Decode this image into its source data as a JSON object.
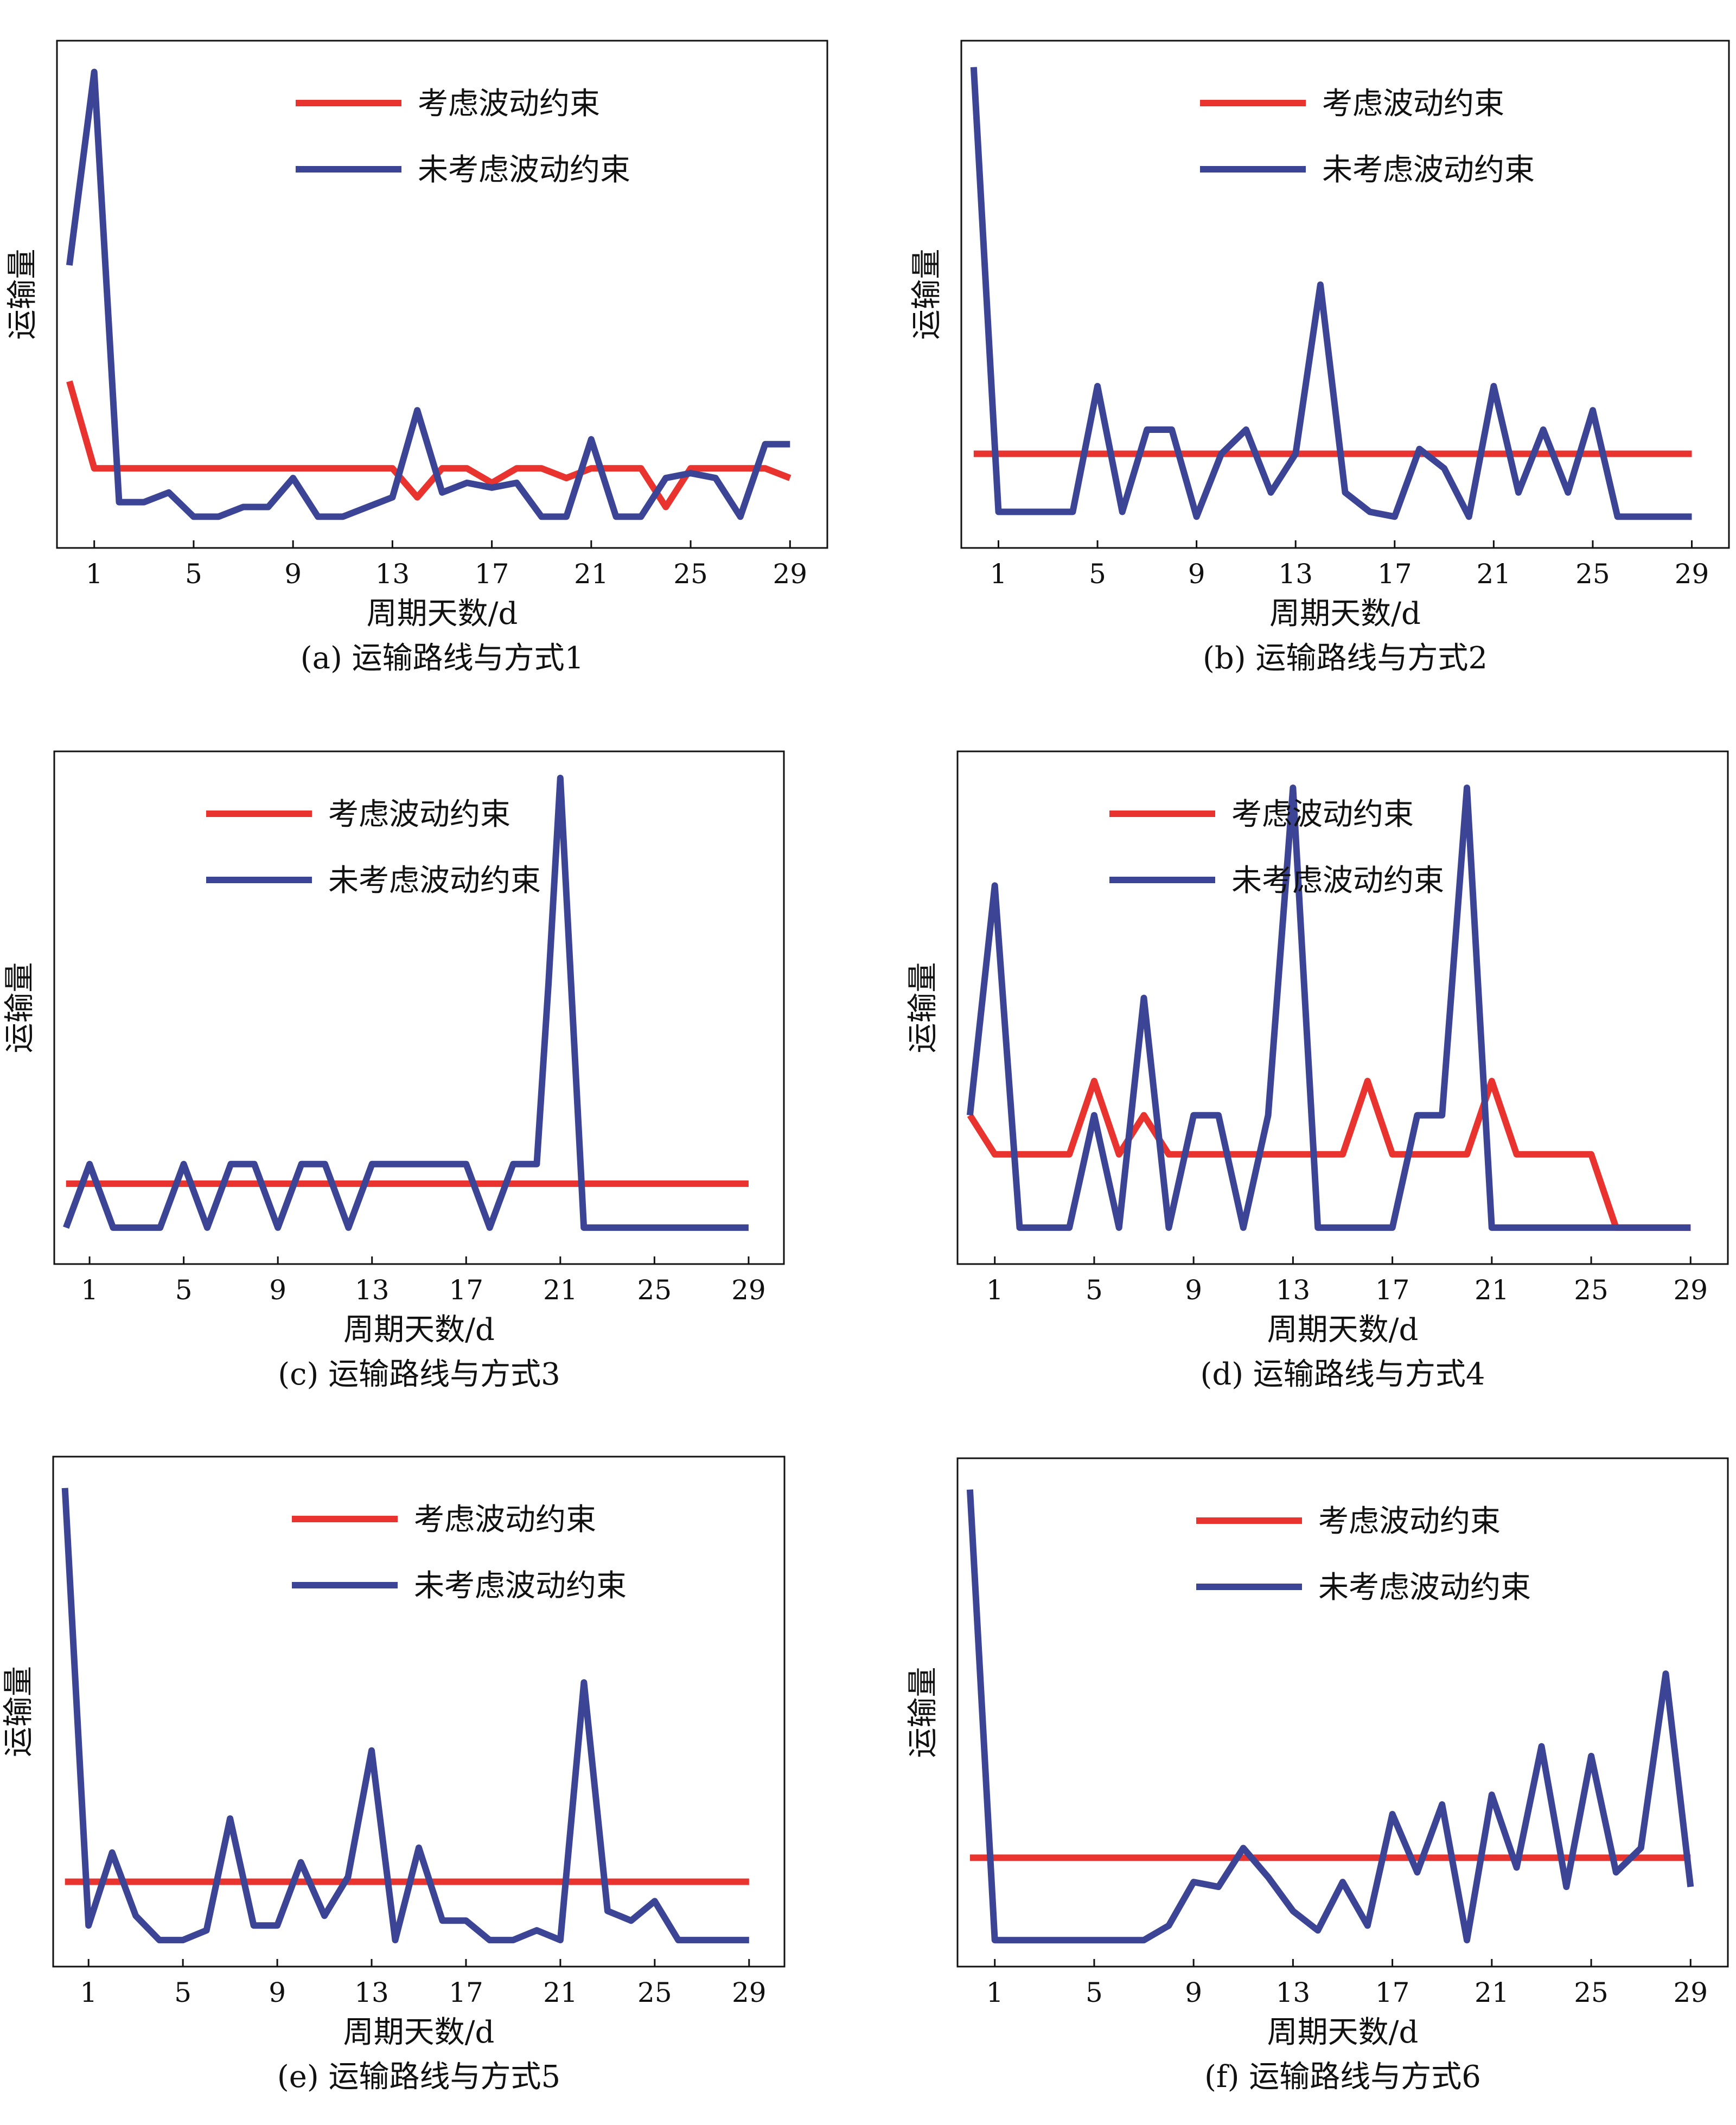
{
  "legend": {
    "considered": "考虑波动约束",
    "unconsidered": "未考虑波动约束"
  },
  "colors": {
    "considered": "#e8332f",
    "unconsidered": "#3c4496",
    "frame": "#111111"
  },
  "chart_data": [
    {
      "type": "line",
      "caption": "(a) 运输路线与方式1",
      "xlabel": "周期天数/d",
      "ylabel": "运输量",
      "x_ticks": [
        1,
        5,
        9,
        13,
        17,
        21,
        25,
        29
      ],
      "xlim": [
        -0.5,
        30.5
      ],
      "ylim": [
        0,
        100
      ],
      "legend_position": "top-center",
      "x": [
        0,
        1,
        2,
        3,
        4,
        5,
        6,
        7,
        8,
        9,
        10,
        11,
        12,
        13,
        14,
        15,
        16,
        17,
        18,
        19,
        20,
        21,
        22,
        23,
        24,
        25,
        26,
        27,
        28,
        29
      ],
      "series": [
        {
          "name": "考虑波动约束",
          "values": [
            32,
            14,
            14,
            14,
            14,
            14,
            14,
            14,
            14,
            14,
            14,
            14,
            14,
            14,
            8,
            14,
            14,
            11,
            14,
            14,
            12,
            14,
            14,
            14,
            6,
            14,
            14,
            14,
            14,
            12
          ]
        },
        {
          "name": "未考虑波动约束",
          "values": [
            56,
            96,
            7,
            7,
            9,
            4,
            4,
            6,
            6,
            12,
            4,
            4,
            6,
            8,
            26,
            9,
            11,
            10,
            11,
            4,
            4,
            20,
            4,
            4,
            12,
            13,
            12,
            4,
            19,
            19
          ]
        }
      ]
    },
    {
      "type": "line",
      "caption": "(b) 运输路线与方式2",
      "xlabel": "周期天数/d",
      "ylabel": "运输量",
      "x_ticks": [
        1,
        5,
        9,
        13,
        17,
        21,
        25,
        29
      ],
      "xlim": [
        -0.5,
        30.5
      ],
      "ylim": [
        0,
        100
      ],
      "legend_position": "top-center",
      "x": [
        0,
        1,
        2,
        3,
        4,
        5,
        6,
        7,
        8,
        9,
        10,
        11,
        12,
        13,
        14,
        15,
        16,
        17,
        18,
        19,
        20,
        21,
        22,
        23,
        24,
        25,
        26,
        27,
        28,
        29
      ],
      "series": [
        {
          "name": "考虑波动约束",
          "values": [
            17,
            17,
            17,
            17,
            17,
            17,
            17,
            17,
            17,
            17,
            17,
            17,
            17,
            17,
            17,
            17,
            17,
            17,
            17,
            17,
            17,
            17,
            17,
            17,
            17,
            17,
            17,
            17,
            17,
            17
          ]
        },
        {
          "name": "未考虑波动约束",
          "values": [
            97,
            5,
            5,
            5,
            5,
            31,
            5,
            22,
            22,
            4,
            17,
            22,
            9,
            17,
            52,
            9,
            5,
            4,
            18,
            14,
            4,
            31,
            9,
            22,
            9,
            26,
            4,
            4,
            4,
            4
          ]
        }
      ]
    },
    {
      "type": "line",
      "caption": "(c) 运输路线与方式3",
      "xlabel": "周期天数/d",
      "ylabel": "运输量",
      "x_ticks": [
        1,
        5,
        9,
        13,
        17,
        21,
        25,
        29
      ],
      "xlim": [
        -0.5,
        30.5
      ],
      "ylim": [
        0,
        100
      ],
      "legend_position": "top-left",
      "x": [
        0,
        1,
        2,
        3,
        4,
        5,
        6,
        7,
        8,
        9,
        10,
        11,
        12,
        13,
        14,
        15,
        16,
        17,
        18,
        19,
        20,
        20.5,
        21,
        22,
        23,
        24,
        25,
        26,
        27,
        28,
        29
      ],
      "series": [
        {
          "name": "考虑波动约束",
          "values": [
            14,
            14,
            14,
            14,
            14,
            14,
            14,
            14,
            14,
            14,
            14,
            14,
            14,
            14,
            14,
            14,
            14,
            14,
            14,
            14,
            14,
            14,
            14,
            14,
            14,
            14,
            14,
            14,
            14,
            14,
            14
          ]
        },
        {
          "name": "未考虑波动约束",
          "values": [
            5,
            18,
            5,
            5,
            5,
            18,
            5,
            18,
            18,
            5,
            18,
            18,
            5,
            18,
            18,
            18,
            18,
            18,
            5,
            18,
            18,
            55,
            97,
            5,
            5,
            5,
            5,
            5,
            5,
            5,
            5
          ]
        }
      ]
    },
    {
      "type": "line",
      "caption": "(d) 运输路线与方式4",
      "xlabel": "周期天数/d",
      "ylabel": "运输量",
      "x_ticks": [
        1,
        5,
        9,
        13,
        17,
        21,
        25,
        29
      ],
      "xlim": [
        -0.5,
        30.5
      ],
      "ylim": [
        0,
        100
      ],
      "legend_position": "top-left",
      "x": [
        0,
        1,
        2,
        3,
        4,
        5,
        6,
        7,
        8,
        9,
        10,
        11,
        12,
        13,
        14,
        15,
        16,
        17,
        18,
        19,
        20,
        21,
        22,
        23,
        24,
        25,
        26,
        27,
        28,
        29
      ],
      "series": [
        {
          "name": "考虑波动约束",
          "values": [
            28,
            20,
            20,
            20,
            20,
            35,
            20,
            28,
            20,
            20,
            20,
            20,
            20,
            20,
            20,
            20,
            35,
            20,
            20,
            20,
            20,
            35,
            20,
            20,
            20,
            20,
            5,
            5,
            5,
            5
          ]
        },
        {
          "name": "未考虑波动约束",
          "values": [
            28,
            75,
            5,
            5,
            5,
            28,
            5,
            52,
            5,
            28,
            28,
            5,
            28,
            95,
            5,
            5,
            5,
            5,
            28,
            28,
            95,
            5,
            5,
            5,
            5,
            5,
            5,
            5,
            5,
            5
          ]
        }
      ]
    },
    {
      "type": "line",
      "caption": "(e) 运输路线与方式5",
      "xlabel": "周期天数/d",
      "ylabel": "运输量",
      "x_ticks": [
        1,
        5,
        9,
        13,
        17,
        21,
        25,
        29
      ],
      "xlim": [
        -0.5,
        30.5
      ],
      "ylim": [
        0,
        100
      ],
      "legend_position": "top-center",
      "x": [
        0,
        1,
        2,
        3,
        4,
        5,
        6,
        7,
        8,
        9,
        10,
        11,
        12,
        13,
        14,
        15,
        16,
        17,
        18,
        19,
        20,
        21,
        22,
        23,
        24,
        25,
        26,
        27,
        28,
        29
      ],
      "series": [
        {
          "name": "考虑波动约束",
          "values": [
            15,
            15,
            15,
            15,
            15,
            15,
            15,
            15,
            15,
            15,
            15,
            15,
            15,
            15,
            15,
            15,
            15,
            15,
            15,
            15,
            15,
            15,
            15,
            15,
            15,
            15,
            15,
            15,
            15,
            15
          ]
        },
        {
          "name": "未考虑波动约束",
          "values": [
            96,
            6,
            21,
            8,
            3,
            3,
            5,
            28,
            6,
            6,
            19,
            8,
            16,
            42,
            3,
            22,
            7,
            7,
            3,
            3,
            5,
            3,
            56,
            9,
            7,
            11,
            3,
            3,
            3,
            3
          ]
        }
      ]
    },
    {
      "type": "line",
      "caption": "(f) 运输路线与方式6",
      "xlabel": "周期天数/d",
      "ylabel": "运输量",
      "x_ticks": [
        1,
        5,
        9,
        13,
        17,
        21,
        25,
        29
      ],
      "xlim": [
        -0.5,
        30.5
      ],
      "ylim": [
        0,
        100
      ],
      "legend_position": "top-center",
      "x": [
        0,
        1,
        2,
        3,
        4,
        5,
        6,
        7,
        8,
        9,
        10,
        11,
        12,
        13,
        14,
        15,
        16,
        17,
        18,
        19,
        20,
        21,
        22,
        23,
        24,
        25,
        26,
        27,
        28,
        29
      ],
      "series": [
        {
          "name": "考虑波动约束",
          "values": [
            20,
            20,
            20,
            20,
            20,
            20,
            20,
            20,
            20,
            20,
            20,
            20,
            20,
            20,
            20,
            20,
            20,
            20,
            20,
            20,
            20,
            20,
            20,
            20,
            20,
            20,
            20,
            20,
            20,
            20
          ]
        },
        {
          "name": "未考虑波动约束",
          "values": [
            96,
            3,
            3,
            3,
            3,
            3,
            3,
            3,
            6,
            15,
            14,
            22,
            16,
            9,
            5,
            15,
            6,
            29,
            17,
            31,
            3,
            33,
            18,
            43,
            14,
            41,
            17,
            22,
            58,
            14
          ]
        }
      ]
    }
  ]
}
